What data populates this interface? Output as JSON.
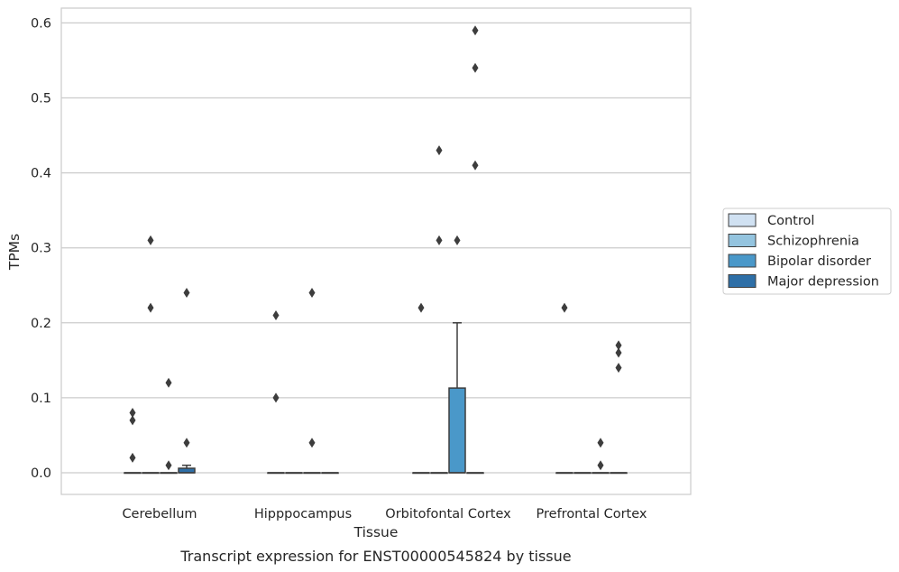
{
  "chart_data": {
    "type": "box",
    "caption": "Transcript expression for ENST00000545824 by tissue",
    "xlabel": "Tissue",
    "ylabel": "TPMs",
    "ylim": [
      -0.028,
      0.62
    ],
    "yticks": [
      0.0,
      0.1,
      0.2,
      0.3,
      0.4,
      0.5,
      0.6
    ],
    "ytick_labels": [
      "0.0",
      "0.1",
      "0.2",
      "0.3",
      "0.4",
      "0.5",
      "0.6"
    ],
    "grid": "horizontal",
    "legend_position": "right",
    "categories": [
      "Cerebellum",
      "Hipppocampus",
      "Orbitofontal Cortex",
      "Prefrontal Cortex"
    ],
    "series": [
      {
        "name": "Control",
        "color": "#d0e1f2",
        "boxes": [
          {
            "q1": 0,
            "median": 0,
            "q3": 0,
            "whisker_low": 0,
            "whisker_high": 0,
            "outliers": [
              0.08,
              0.07,
              0.02
            ]
          },
          {
            "q1": 0,
            "median": 0,
            "q3": 0,
            "whisker_low": 0,
            "whisker_high": 0,
            "outliers": [
              0.21,
              0.1
            ]
          },
          {
            "q1": 0,
            "median": 0,
            "q3": 0,
            "whisker_low": 0,
            "whisker_high": 0,
            "outliers": [
              0.22
            ]
          },
          {
            "q1": 0,
            "median": 0,
            "q3": 0,
            "whisker_low": 0,
            "whisker_high": 0,
            "outliers": [
              0.22
            ]
          }
        ]
      },
      {
        "name": "Schizophrenia",
        "color": "#94c4df",
        "boxes": [
          {
            "q1": 0,
            "median": 0,
            "q3": 0,
            "whisker_low": 0,
            "whisker_high": 0,
            "outliers": [
              0.31,
              0.22
            ]
          },
          {
            "q1": 0,
            "median": 0,
            "q3": 0,
            "whisker_low": 0,
            "whisker_high": 0,
            "outliers": []
          },
          {
            "q1": 0,
            "median": 0,
            "q3": 0,
            "whisker_low": 0,
            "whisker_high": 0,
            "outliers": [
              0.43,
              0.31
            ]
          },
          {
            "q1": 0,
            "median": 0,
            "q3": 0,
            "whisker_low": 0,
            "whisker_high": 0,
            "outliers": []
          }
        ]
      },
      {
        "name": "Bipolar disorder",
        "color": "#4a98c9",
        "boxes": [
          {
            "q1": 0,
            "median": 0,
            "q3": 0,
            "whisker_low": 0,
            "whisker_high": 0,
            "outliers": [
              0.12,
              0.01
            ]
          },
          {
            "q1": 0,
            "median": 0,
            "q3": 0,
            "whisker_low": 0,
            "whisker_high": 0,
            "outliers": [
              0.24,
              0.04
            ]
          },
          {
            "q1": 0,
            "median": 0,
            "q3": 0.113,
            "whisker_low": 0,
            "whisker_high": 0.2,
            "outliers": [
              0.31
            ]
          },
          {
            "q1": 0,
            "median": 0,
            "q3": 0,
            "whisker_low": 0,
            "whisker_high": 0,
            "outliers": [
              0.04,
              0.01
            ]
          }
        ]
      },
      {
        "name": "Major depression",
        "color": "#2e6fa7",
        "boxes": [
          {
            "q1": 0,
            "median": 0,
            "q3": 0.006,
            "whisker_low": 0,
            "whisker_high": 0.01,
            "outliers": [
              0.24,
              0.04
            ]
          },
          {
            "q1": 0,
            "median": 0,
            "q3": 0,
            "whisker_low": 0,
            "whisker_high": 0,
            "outliers": []
          },
          {
            "q1": 0,
            "median": 0,
            "q3": 0,
            "whisker_low": 0,
            "whisker_high": 0,
            "outliers": [
              0.59,
              0.54,
              0.41
            ]
          },
          {
            "q1": 0,
            "median": 0,
            "q3": 0,
            "whisker_low": 0,
            "whisker_high": 0,
            "outliers": [
              0.17,
              0.16,
              0.14
            ]
          }
        ]
      }
    ]
  }
}
